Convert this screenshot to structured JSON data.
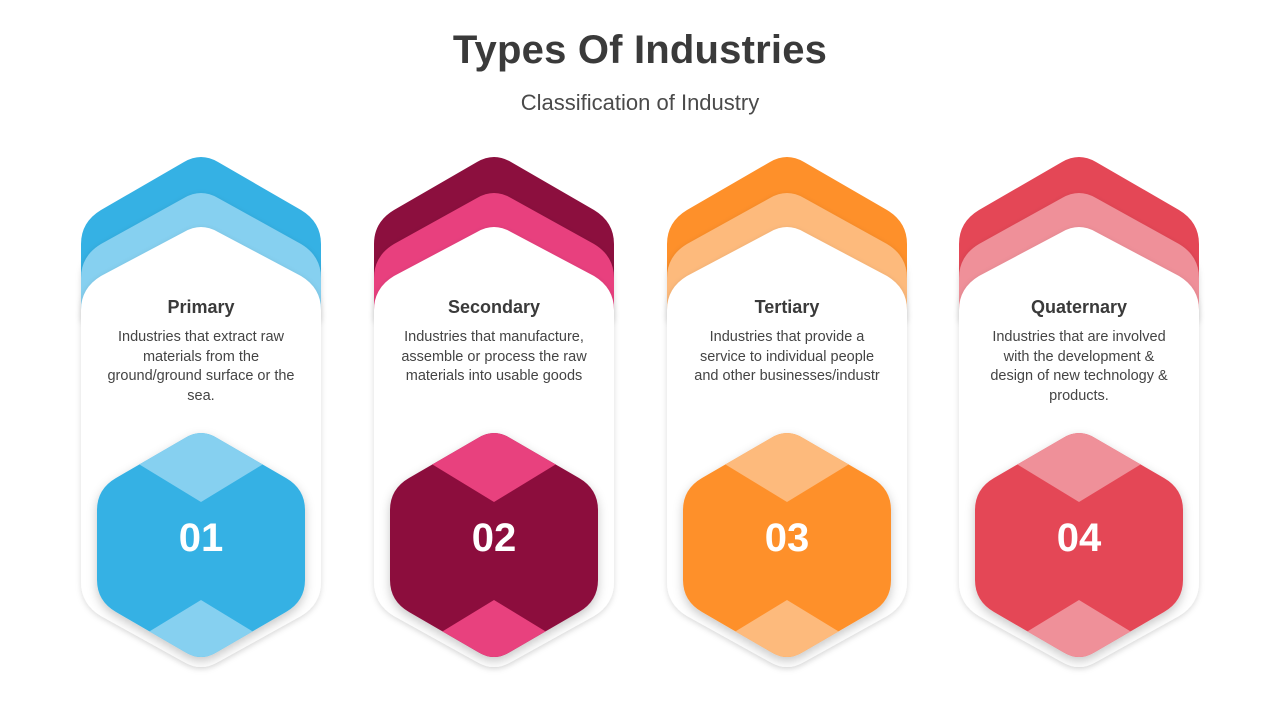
{
  "slide": {
    "title": "Types Of Industries",
    "subtitle": "Classification of Industry"
  },
  "cards": [
    {
      "number": "01",
      "title": "Primary",
      "description": "Industries that extract raw materials from the ground/ground surface or the sea.",
      "colors": {
        "dark": "#35b1e4",
        "light": "#86d0f0"
      }
    },
    {
      "number": "02",
      "title": "Secondary",
      "description": "Industries that manufacture, assemble or process the raw materials into usable goods",
      "colors": {
        "dark": "#8c0f3e",
        "light": "#e8417e"
      }
    },
    {
      "number": "03",
      "title": "Tertiary",
      "description": "Industries that provide a service to individual people and other businesses/industr",
      "colors": {
        "dark": "#fe902a",
        "light": "#fdba7c"
      }
    },
    {
      "number": "04",
      "title": "Quaternary",
      "description": "Industries that are involved with the development & design of new technology & products.",
      "colors": {
        "dark": "#e44756",
        "light": "#ef9099"
      }
    }
  ]
}
